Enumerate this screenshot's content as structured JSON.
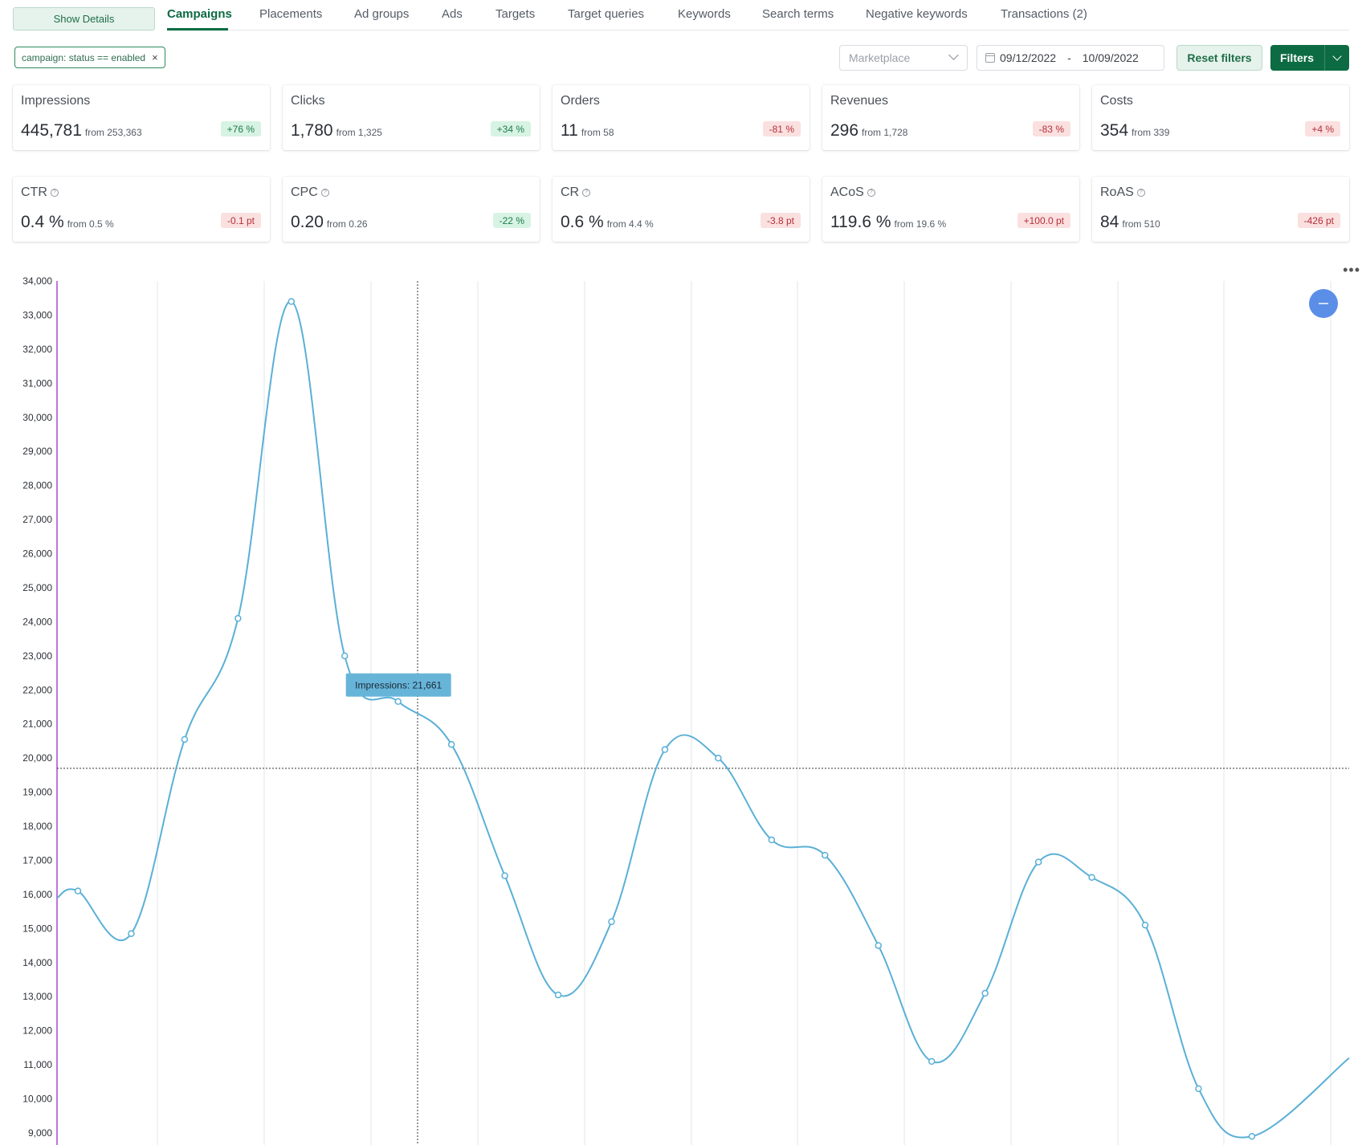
{
  "toolbar": {
    "show_details_label": "Show Details"
  },
  "tabs": [
    {
      "label": "Campaigns",
      "active": true
    },
    {
      "label": "Placements"
    },
    {
      "label": "Ad groups"
    },
    {
      "label": "Ads"
    },
    {
      "label": "Targets"
    },
    {
      "label": "Target queries"
    },
    {
      "label": "Keywords"
    },
    {
      "label": "Search terms"
    },
    {
      "label": "Negative keywords"
    },
    {
      "label": "Transactions (2)"
    }
  ],
  "filters": {
    "chip_label": "campaign: status == enabled",
    "chip_close": "×",
    "marketplace_placeholder": "Marketplace",
    "date_from": "09/12/2022",
    "date_sep": "-",
    "date_to": "10/09/2022",
    "reset_label": "Reset filters",
    "filters_label": "Filters"
  },
  "metrics_row1": [
    {
      "title": "Impressions",
      "value": "445,781",
      "from": "from 253,363",
      "delta": "+76 %",
      "trend": "pos"
    },
    {
      "title": "Clicks",
      "value": "1,780",
      "from": "from 1,325",
      "delta": "+34 %",
      "trend": "pos"
    },
    {
      "title": "Orders",
      "value": "11",
      "from": "from 58",
      "delta": "-81 %",
      "trend": "neg"
    },
    {
      "title": "Revenues",
      "value": "296",
      "from": "from 1,728",
      "delta": "-83 %",
      "trend": "neg"
    },
    {
      "title": "Costs",
      "value": "354",
      "from": "from 339",
      "delta": "+4 %",
      "trend": "neg"
    }
  ],
  "metrics_row2": [
    {
      "title": "CTR",
      "value": "0.4 %",
      "from": "from 0.5 %",
      "delta": "-0.1 pt",
      "trend": "neg"
    },
    {
      "title": "CPC",
      "value": "0.20",
      "from": "from 0.26",
      "delta": "-22 %",
      "trend": "pos"
    },
    {
      "title": "CR",
      "value": "0.6 %",
      "from": "from 4.4 %",
      "delta": "-3.8 pt",
      "trend": "neg"
    },
    {
      "title": "ACoS",
      "value": "119.6 %",
      "from": "from 19.6 %",
      "delta": "+100.0 pt",
      "trend": "neg"
    },
    {
      "title": "RoAS",
      "value": "84",
      "from": "from 510",
      "delta": "-426 pt",
      "trend": "neg"
    }
  ],
  "chart_data": {
    "type": "line",
    "ylim": [
      9000,
      34000
    ],
    "y_ticks": [
      "34,000",
      "33,000",
      "32,000",
      "31,000",
      "30,000",
      "29,000",
      "28,000",
      "27,000",
      "26,000",
      "25,000",
      "24,000",
      "23,000",
      "22,000",
      "21,000",
      "20,000",
      "19,000",
      "18,000",
      "17,000",
      "16,000",
      "15,000",
      "14,000",
      "13,000",
      "12,000",
      "11,000",
      "10,000",
      "9,000"
    ],
    "series": [
      {
        "color": "#5ab0d6",
        "values": [
          16100,
          14850,
          20550,
          24100,
          33400,
          23000,
          21661,
          20400,
          16550,
          13050,
          15200,
          20250,
          20000,
          17600,
          17150,
          14500,
          11100,
          13100,
          16950,
          16500,
          15100,
          10300,
          8900
        ]
      }
    ],
    "tooltip": {
      "text": "Impressions: 21,661",
      "point_index": 6
    },
    "reference_line": 19700,
    "colors": {
      "primary": "#0c6b42",
      "line": "#5ab0d6",
      "axis": "#a64ad6"
    }
  }
}
